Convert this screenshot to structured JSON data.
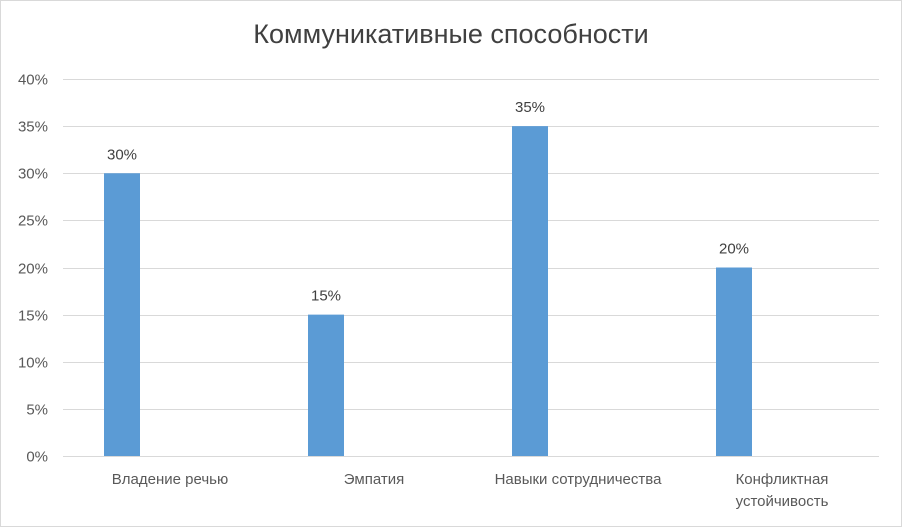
{
  "chart_data": {
    "type": "bar",
    "title": "Коммуникативные способности",
    "categories": [
      [
        "Владение речью"
      ],
      [
        "Эмпатия"
      ],
      [
        "Навыки сотрудничества"
      ],
      [
        "Конфликтная",
        "устойчивость"
      ]
    ],
    "values": [
      30,
      15,
      35,
      20
    ],
    "value_format": "percent",
    "data_labels": [
      "30%",
      "15%",
      "35%",
      "20%"
    ],
    "yticks": [
      "0%",
      "5%",
      "10%",
      "15%",
      "20%",
      "25%",
      "30%",
      "35%",
      "40%"
    ],
    "ylim": [
      0,
      40
    ],
    "grid": true,
    "legend": "none",
    "bar_color": "#5b9bd5"
  }
}
